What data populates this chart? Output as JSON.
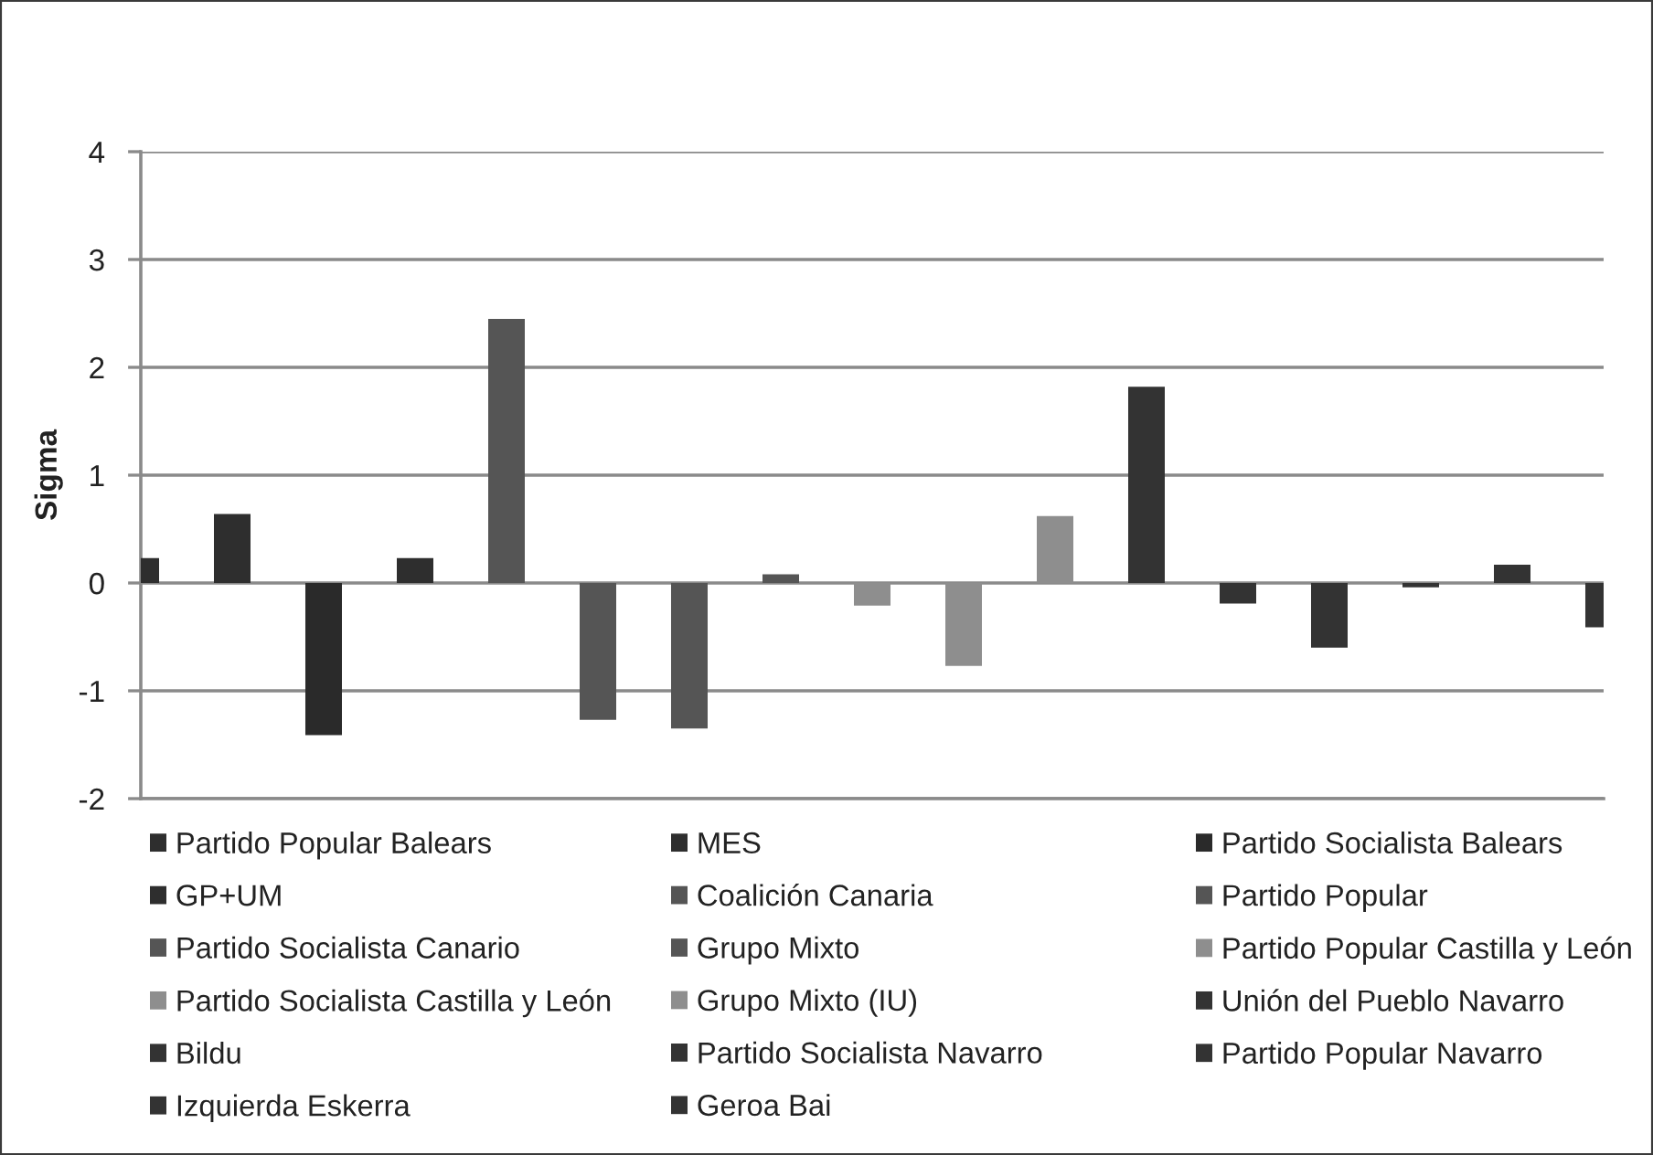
{
  "chart_data": {
    "type": "bar",
    "ylabel": "Sigma",
    "categories": [
      null,
      null,
      null,
      null,
      null,
      null,
      null,
      null,
      null,
      null,
      null,
      null,
      null,
      null,
      null,
      null,
      null
    ],
    "series": [
      {
        "name": "Partido Popular Balears",
        "color": "#2e2e2e",
        "values": [
          0.23,
          null,
          null,
          null,
          null,
          null,
          null,
          null,
          null,
          null,
          null,
          null,
          null,
          null,
          null,
          null,
          null
        ]
      },
      {
        "name": "MES",
        "color": "#2e2e2e",
        "values": [
          null,
          0.64,
          null,
          null,
          null,
          null,
          null,
          null,
          null,
          null,
          null,
          null,
          null,
          null,
          null,
          null,
          null
        ]
      },
      {
        "name": "Partido Socialista Balears",
        "color": "#2a2a2a",
        "values": [
          null,
          null,
          -1.41,
          null,
          null,
          null,
          null,
          null,
          null,
          null,
          null,
          null,
          null,
          null,
          null,
          null,
          null
        ]
      },
      {
        "name": "GP+UM",
        "color": "#2e2e2e",
        "values": [
          null,
          null,
          null,
          0.23,
          null,
          null,
          null,
          null,
          null,
          null,
          null,
          null,
          null,
          null,
          null,
          null,
          null
        ]
      },
      {
        "name": "Coalición Canaria",
        "color": "#555555",
        "values": [
          null,
          null,
          null,
          null,
          2.45,
          null,
          null,
          null,
          null,
          null,
          null,
          null,
          null,
          null,
          null,
          null,
          null
        ]
      },
      {
        "name": "Partido Popular",
        "color": "#555555",
        "values": [
          null,
          null,
          null,
          null,
          null,
          -1.27,
          null,
          null,
          null,
          null,
          null,
          null,
          null,
          null,
          null,
          null,
          null
        ]
      },
      {
        "name": "Partido Socialista Canario",
        "color": "#555555",
        "values": [
          null,
          null,
          null,
          null,
          null,
          null,
          -1.35,
          null,
          null,
          null,
          null,
          null,
          null,
          null,
          null,
          null,
          null
        ]
      },
      {
        "name": "Grupo Mixto",
        "color": "#555555",
        "values": [
          null,
          null,
          null,
          null,
          null,
          null,
          null,
          0.08,
          null,
          null,
          null,
          null,
          null,
          null,
          null,
          null,
          null
        ]
      },
      {
        "name": "Partido Popular Castilla y León",
        "color": "#8e8e8e",
        "values": [
          null,
          null,
          null,
          null,
          null,
          null,
          null,
          null,
          -0.21,
          null,
          null,
          null,
          null,
          null,
          null,
          null,
          null
        ]
      },
      {
        "name": "Partido Socialista Castilla y León",
        "color": "#8e8e8e",
        "values": [
          null,
          null,
          null,
          null,
          null,
          null,
          null,
          null,
          null,
          -0.77,
          null,
          null,
          null,
          null,
          null,
          null,
          null
        ]
      },
      {
        "name": "Grupo Mixto (IU)",
        "color": "#8e8e8e",
        "values": [
          null,
          null,
          null,
          null,
          null,
          null,
          null,
          null,
          null,
          null,
          0.62,
          null,
          null,
          null,
          null,
          null,
          null
        ]
      },
      {
        "name": "Unión del Pueblo Navarro",
        "color": "#333333",
        "values": [
          null,
          null,
          null,
          null,
          null,
          null,
          null,
          null,
          null,
          null,
          null,
          1.82,
          null,
          null,
          null,
          null,
          null
        ]
      },
      {
        "name": "Bildu",
        "color": "#333333",
        "values": [
          null,
          null,
          null,
          null,
          null,
          null,
          null,
          null,
          null,
          null,
          null,
          null,
          -0.19,
          null,
          null,
          null,
          null
        ]
      },
      {
        "name": "Partido Socialista Navarro",
        "color": "#333333",
        "values": [
          null,
          null,
          null,
          null,
          null,
          null,
          null,
          null,
          null,
          null,
          null,
          null,
          null,
          -0.6,
          null,
          null,
          null
        ]
      },
      {
        "name": "Partido Popular Navarro",
        "color": "#333333",
        "values": [
          null,
          null,
          null,
          null,
          null,
          null,
          null,
          null,
          null,
          null,
          null,
          null,
          null,
          null,
          -0.04,
          null,
          null
        ]
      },
      {
        "name": "Izquierda Eskerra",
        "color": "#333333",
        "values": [
          null,
          null,
          null,
          null,
          null,
          null,
          null,
          null,
          null,
          null,
          null,
          null,
          null,
          null,
          null,
          0.17,
          null
        ]
      },
      {
        "name": "Geroa Bai",
        "color": "#333333",
        "values": [
          null,
          null,
          null,
          null,
          null,
          null,
          null,
          null,
          null,
          null,
          null,
          null,
          null,
          null,
          null,
          null,
          -0.41
        ]
      }
    ],
    "ylim": [
      -2,
      4
    ],
    "yticks": [
      -2,
      -1,
      0,
      1,
      2,
      3,
      4
    ],
    "tick_labels": "y",
    "grid": "y",
    "legend": "bottom"
  }
}
